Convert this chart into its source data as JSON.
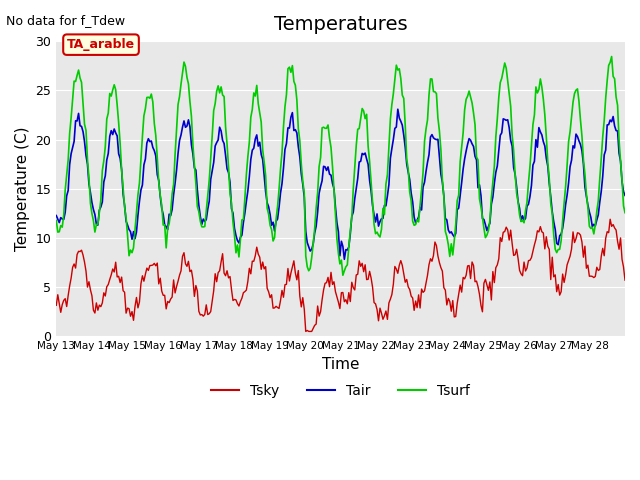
{
  "title": "Temperatures",
  "xlabel": "Time",
  "ylabel": "Temperature (C)",
  "note": "No data for f_Tdew",
  "box_label": "TA_arable",
  "ylim": [
    0,
    30
  ],
  "yticks": [
    0,
    5,
    10,
    15,
    20,
    25,
    30
  ],
  "x_tick_labels": [
    "May 13",
    "May 14",
    "May 15",
    "May 16",
    "May 17",
    "May 18",
    "May 19",
    "May 20",
    "May 21",
    "May 22",
    "May 23",
    "May 24",
    "May 25",
    "May 26",
    "May 27",
    "May 28"
  ],
  "bg_color": "#e8e8e8",
  "plot_bg_color": "#e8e8e8",
  "tsky_color": "#cc0000",
  "tair_color": "#0000cc",
  "tsurf_color": "#00cc00",
  "title_fontsize": 14,
  "axis_label_fontsize": 11
}
